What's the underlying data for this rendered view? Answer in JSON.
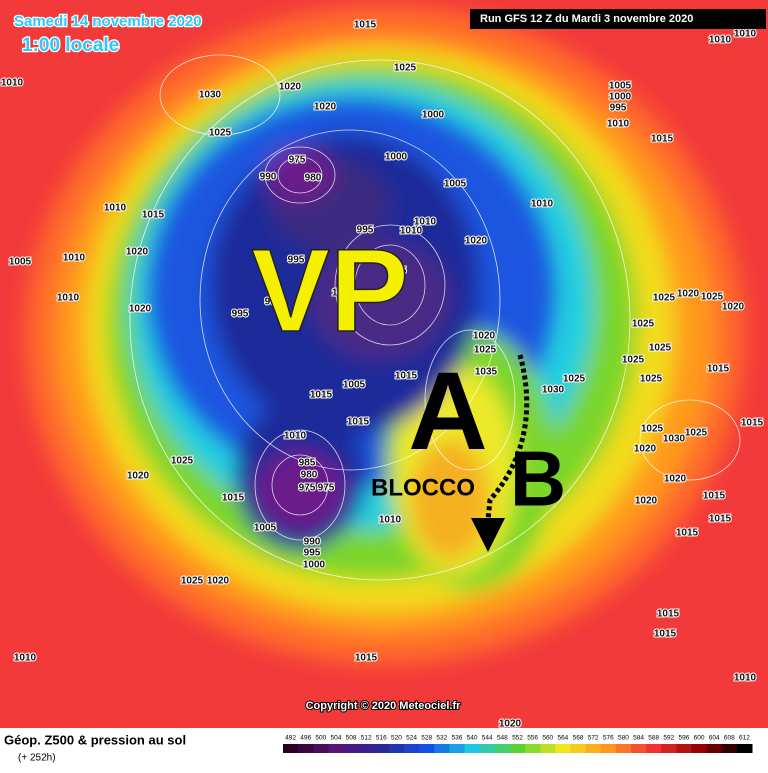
{
  "header": {
    "date": "Samedi 14 novembre 2020",
    "time": "1:00 locale",
    "run": "Run GFS 12 Z du Mardi 3 novembre 2020"
  },
  "annotations": {
    "vortex": "VP",
    "high": "A",
    "low": "B",
    "block": "BLOCCO"
  },
  "isobar_labels": [
    1015,
    1010,
    1030,
    1020,
    1025,
    1020,
    1025,
    1000,
    1005,
    1000,
    995,
    1010,
    1015,
    1010,
    1010,
    975,
    990,
    980,
    1000,
    1005,
    1010,
    1010,
    1015,
    995,
    1010,
    1010,
    1020,
    1005,
    1010,
    1020,
    995,
    975,
    1000,
    990,
    1010,
    1020,
    995,
    1025,
    1020,
    1025,
    1020,
    1025,
    1020,
    1025,
    1025,
    1025,
    1025,
    1015,
    1035,
    1015,
    1005,
    1015,
    1025,
    1030,
    1015,
    1010,
    1025,
    1030,
    1025,
    1015,
    1025,
    1020,
    985,
    980,
    975,
    975,
    1020,
    1020,
    1020,
    1015,
    1015,
    1015,
    1005,
    1010,
    1015,
    990,
    995,
    1000,
    1025,
    1020,
    1015,
    1015,
    1015,
    1010,
    1010,
    1020
  ],
  "copyright": "Copyright © 2020 Meteociel.fr",
  "footer": {
    "title": "Géop. Z500 & pression au sol",
    "lead": "(+ 252h)"
  },
  "colorbar": {
    "ticks": [
      492,
      496,
      500,
      504,
      508,
      512,
      516,
      520,
      524,
      528,
      532,
      536,
      540,
      544,
      548,
      552,
      556,
      560,
      564,
      568,
      572,
      576,
      580,
      584,
      588,
      592,
      596,
      600,
      604,
      608,
      612
    ]
  }
}
